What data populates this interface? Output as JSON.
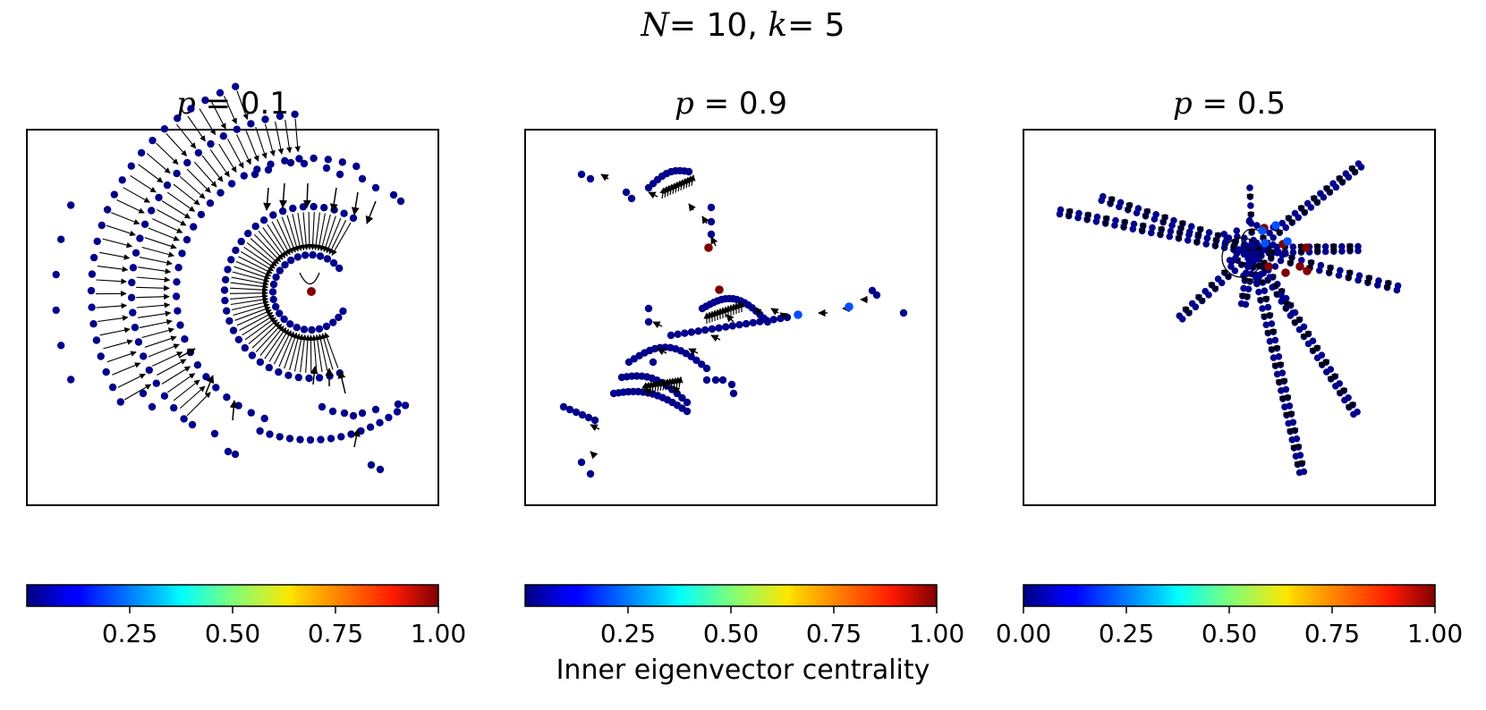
{
  "figure": {
    "suptitle_n": "N",
    "suptitle_n_val": "= 10, ",
    "suptitle_k": "k",
    "suptitle_k_val": "= 5",
    "colorbar_label": "Inner eigenvector centrality"
  },
  "colors": {
    "node_low": "#00008b",
    "node_mid": "#0050ff",
    "node_high": "#7f0000",
    "edge": "#000000",
    "colormap": "jet"
  },
  "chart_data": [
    {
      "type": "scatter",
      "title_var": "p",
      "title_val": "= 0.1",
      "layout": "concentric arcs around a central red hub",
      "colorbar": {
        "range": [
          0,
          1
        ],
        "ticks": [
          "0.25",
          "0.50",
          "0.75",
          "1.00"
        ]
      }
    },
    {
      "type": "scatter",
      "title_var": "p",
      "title_val": "= 0.9",
      "layout": "branching arcs with two red hubs",
      "colorbar": {
        "range": [
          0,
          1
        ],
        "ticks": [
          "0.25",
          "0.50",
          "0.75",
          "1.00"
        ]
      }
    },
    {
      "type": "scatter",
      "title_var": "p",
      "title_val": "= 0.5",
      "layout": "star with radiating chains from central cluster",
      "colorbar": {
        "range": [
          0,
          1
        ],
        "ticks": [
          "0.00",
          "0.25",
          "0.50",
          "0.75",
          "1.00"
        ]
      }
    }
  ]
}
